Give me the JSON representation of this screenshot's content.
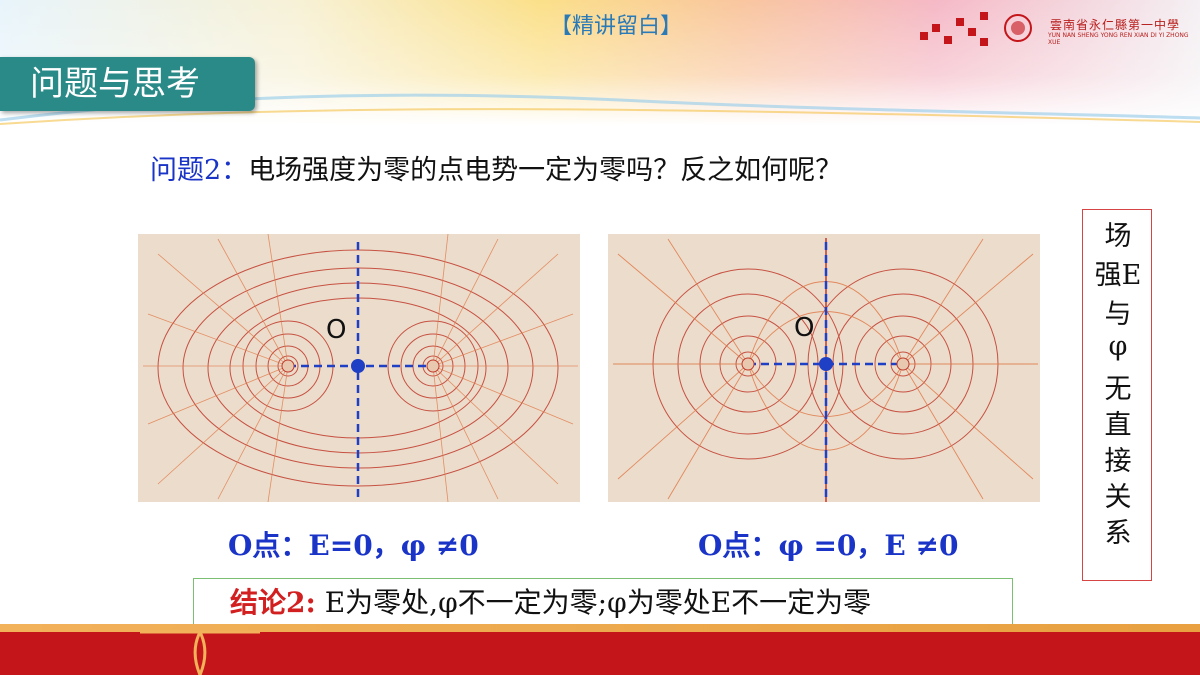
{
  "header": {
    "tag": "【精讲留白】",
    "section_title": "问题与思考",
    "logo_text": "雲南省永仁縣第一中學",
    "logo_sub": "YUN NAN SHENG YONG REN XIAN DI YI ZHONG XUE"
  },
  "question": {
    "label": "问题2：",
    "text": "电场强度为零的点电势一定为零吗？反之如何呢？"
  },
  "figures": [
    {
      "point_label": "O",
      "caption": "O点：E=0，φ ≠0"
    },
    {
      "point_label": "O",
      "caption": "O点：φ =0，E ≠0"
    }
  ],
  "conclusion": {
    "label": "结论2:",
    "text": "E为零处,φ不一定为零;φ为零处E不一定为零"
  },
  "sidebox": {
    "chars": [
      "场",
      "强E",
      "与",
      "φ",
      "无",
      "直",
      "接",
      "关",
      "系"
    ]
  },
  "colors": {
    "section_tab": "#2a8a88",
    "question_label": "#1a34c8",
    "conclusion_label": "#d21f1f",
    "bottom_bar": "#c4161a",
    "field_line": "#c0392b",
    "axis": "#1f3fc4"
  }
}
